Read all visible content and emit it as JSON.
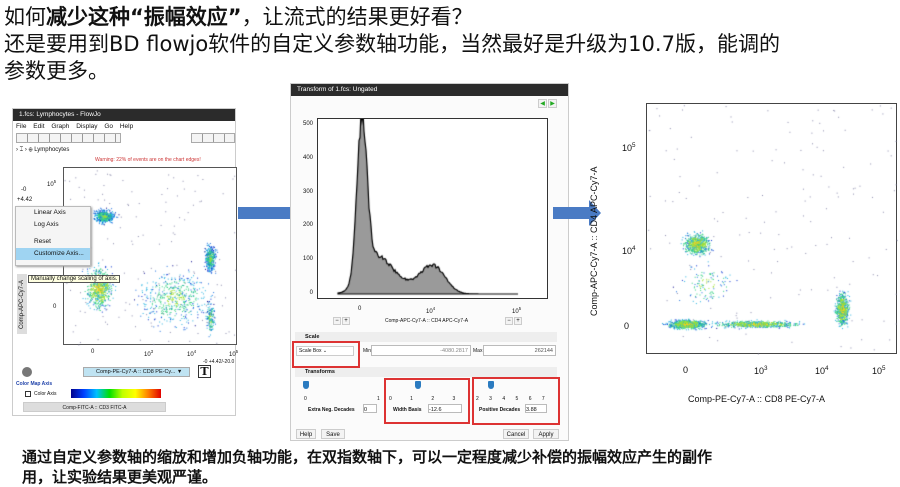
{
  "slide": {
    "title_line1_pre": "如何",
    "title_line1_bold": "减少这种“振幅效应”",
    "title_line1_post": "，让流式的结果更好看？",
    "title_line2": "还是要用到BD flowjo软件的自定义参数轴功能，当然最好是升级为10.7版，能调的",
    "title_line3": "参数更多。",
    "footer_line1": "通过自定义参数轴的缩放和增加负轴功能，在双指数轴下，可以一定程度减少补偿的振幅效应产生的副作",
    "footer_line2": "用，让实验结果更美观严谨。",
    "arrow_color": "#4a7bc4",
    "highlight_color": "#d33333"
  },
  "left_window": {
    "title": "1.fcs: Lymphocytes - FlowJo",
    "menu": [
      "File",
      "Edit",
      "Graph",
      "Display",
      "Go",
      "Help"
    ],
    "breadcrumb": "Lymphocytes",
    "warning": "Warning: 22% of events are on the chart edges!",
    "y_range_top": "-0",
    "y_range_bottom": "+4.42",
    "y_ticks": [
      "10^5",
      "0"
    ],
    "x_ticks": [
      "0",
      "10^3",
      "10^4",
      "10^5"
    ],
    "x_range": "-0 +4.42/-20.0",
    "y_axis_label": "Comp-APC-Cy7-A",
    "context_menu": [
      "Linear Axis",
      "Log Axis",
      "Reset",
      "Customize Axis..."
    ],
    "selected_menu_item": "Customize Axis...",
    "tooltip": "Manually change scaling of axis.",
    "x_param": "Comp-PE-Cy7-A :: CD8 PE-Cy...",
    "text_button": "T",
    "color_map_header": "Color Map Axis",
    "color_axis_label": "Color Axis",
    "color_axis_checked": false,
    "color_param": "Comp-FITC-A :: CD3 FITC-A"
  },
  "middle_window": {
    "title": "Transform of 1.fcs: Ungated",
    "y_ticks": [
      "500",
      "400",
      "300",
      "200",
      "100",
      "0"
    ],
    "x_ticks": [
      "0",
      "10^4",
      "10^5"
    ],
    "x_label": "Comp-APC-Cy7-A :: CD4 APC-Cy7-A",
    "scale_header": "Scale",
    "scale_select": "Scale Box",
    "min_label": "Min",
    "min_value": "-4080.2817",
    "max_label": "Max",
    "max_value": "262144",
    "transforms_header": "Transforms",
    "extra_neg": {
      "label": "Extra Neg. Decades",
      "value": "0",
      "ticks": [
        "0",
        "1"
      ],
      "position": 0
    },
    "width_basis": {
      "label": "Width Basis",
      "value": "-12.6",
      "ticks": [
        "0",
        "1",
        "2",
        "3"
      ],
      "position": 0.4
    },
    "positive_decades": {
      "label": "Positive Decades",
      "value": "3.88",
      "ticks": [
        "2",
        "3",
        "4",
        "5",
        "6",
        "7"
      ],
      "position": 0.2
    },
    "buttons": {
      "help": "Help",
      "save": "Save",
      "cancel": "Cancel",
      "apply": "Apply"
    }
  },
  "right_plot": {
    "y_label": "Comp-APC-Cy7-A :: CD4 APC-Cy7-A",
    "x_label": "Comp-PE-Cy7-A :: CD8 PE-Cy7-A",
    "y_ticks": [
      "10^5",
      "10^4",
      "0"
    ],
    "x_ticks": [
      "0",
      "10^3",
      "10^4",
      "10^5"
    ]
  }
}
